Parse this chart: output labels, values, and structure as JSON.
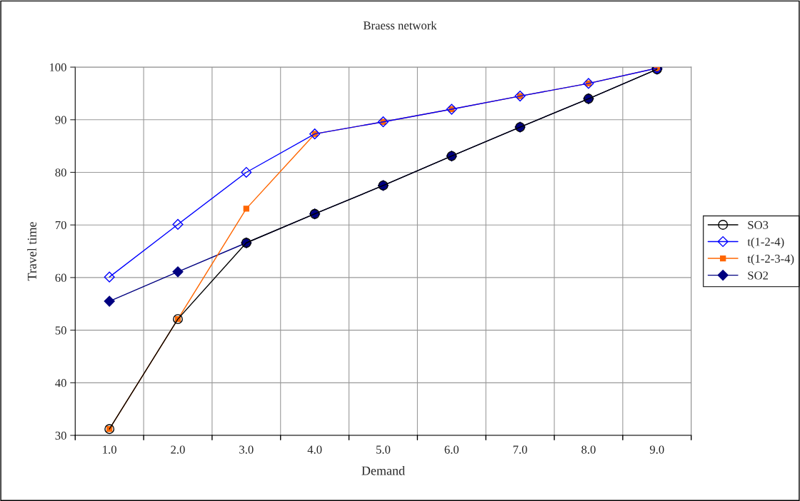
{
  "chart_data": {
    "type": "line",
    "title": "Braess network",
    "xlabel": "Demand",
    "ylabel": "Travel time",
    "categories": [
      "1.0",
      "2.0",
      "3.0",
      "4.0",
      "5.0",
      "6.0",
      "7.0",
      "8.0",
      "9.0"
    ],
    "series": [
      {
        "name": "SO3",
        "color": "#000000",
        "marker": "circle",
        "values": [
          31.2,
          52.1,
          66.6,
          72.1,
          77.5,
          83.1,
          88.6,
          94.0,
          99.6
        ]
      },
      {
        "name": "t(1-2-4)",
        "color": "#0000ff",
        "marker": "diamond",
        "values": [
          60.1,
          70.1,
          80.0,
          87.3,
          89.6,
          92.0,
          94.5,
          96.9,
          99.8
        ]
      },
      {
        "name": "t(1-2-3-4)",
        "color": "#ff6600",
        "marker": "square",
        "values": [
          31.2,
          52.1,
          73.1,
          87.3,
          89.6,
          92.0,
          94.5,
          96.9,
          99.8
        ]
      },
      {
        "name": "SO2",
        "color": "#000080",
        "marker": "diamond",
        "values": [
          55.5,
          61.1,
          66.6,
          72.1,
          77.5,
          83.1,
          88.6,
          94.0,
          99.6
        ]
      }
    ],
    "ylim": [
      30,
      100
    ],
    "yticks": [
      30,
      40,
      50,
      60,
      70,
      80,
      90,
      100
    ],
    "grid": true,
    "legend": "right",
    "line_style": "solid"
  }
}
